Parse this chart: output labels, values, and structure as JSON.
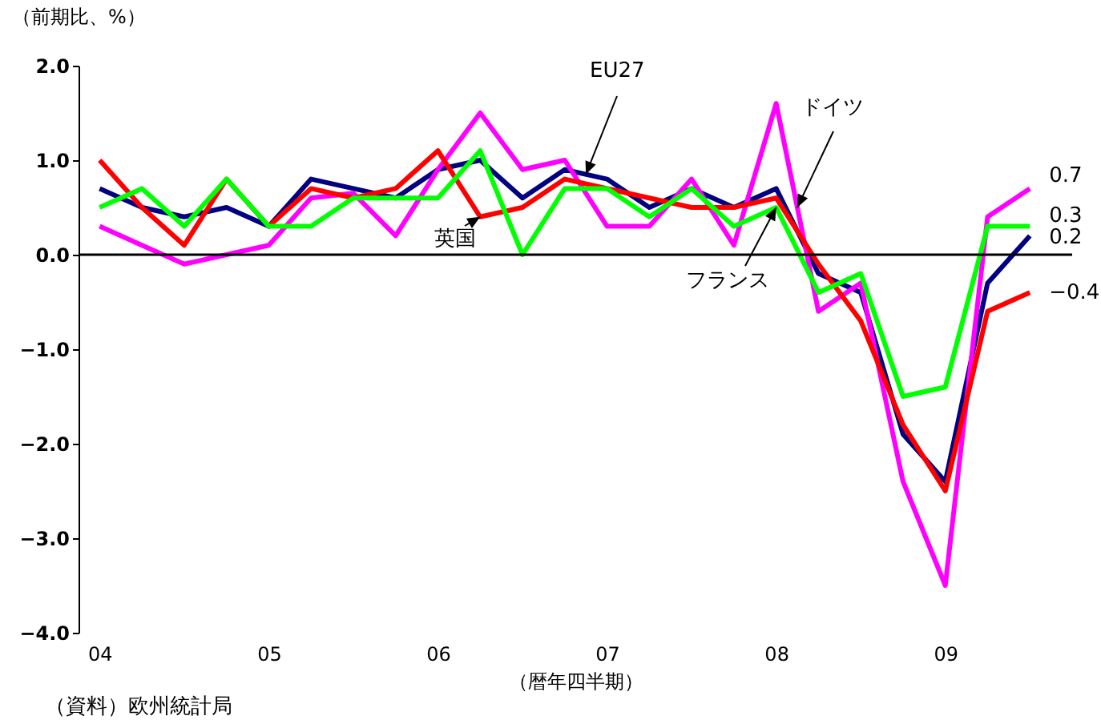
{
  "chart_data": {
    "type": "line",
    "ylabel": "（前期比、%）",
    "xlabel": "（暦年四半期）",
    "annotations": [
      "（資料）欧州統計局"
    ],
    "x": [
      2004,
      2004.25,
      2004.5,
      2004.75,
      2005,
      2005.25,
      2005.5,
      2005.75,
      2006,
      2006.25,
      2006.5,
      2006.75,
      2007,
      2007.25,
      2007.5,
      2007.75,
      2008,
      2008.25,
      2008.5,
      2008.75,
      2009,
      2009.25,
      2009.5
    ],
    "series": [
      {
        "name": "EU27",
        "color": "#000080",
        "values": [
          0.7,
          0.5,
          0.4,
          0.5,
          0.3,
          0.8,
          0.7,
          0.6,
          0.9,
          1.0,
          0.6,
          0.9,
          0.8,
          0.5,
          0.7,
          0.5,
          0.7,
          -0.2,
          -0.4,
          -1.9,
          -2.4,
          -0.3,
          0.2
        ],
        "value_labels": [
          null,
          null,
          null,
          null,
          null,
          null,
          null,
          null,
          null,
          null,
          null,
          null,
          null,
          null,
          null,
          null,
          null,
          null,
          null,
          null,
          null,
          null,
          "0.2"
        ]
      },
      {
        "name": "ドイツ",
        "color": "#ff00ff",
        "values": [
          0.3,
          0.1,
          -0.1,
          0.0,
          0.1,
          0.6,
          0.65,
          0.2,
          0.9,
          1.5,
          0.9,
          1.0,
          0.3,
          0.3,
          0.8,
          0.1,
          1.6,
          -0.6,
          -0.3,
          -2.4,
          -3.5,
          0.4,
          0.7
        ],
        "value_labels": [
          null,
          null,
          null,
          null,
          null,
          null,
          null,
          null,
          null,
          null,
          null,
          null,
          null,
          null,
          null,
          null,
          null,
          null,
          null,
          null,
          null,
          null,
          "0.7"
        ]
      },
      {
        "name": "英国",
        "color": "#ff0000",
        "values": [
          1.0,
          0.5,
          0.1,
          0.8,
          0.3,
          0.7,
          0.6,
          0.7,
          1.1,
          0.4,
          0.5,
          0.8,
          0.7,
          0.6,
          0.5,
          0.5,
          0.6,
          -0.1,
          -0.7,
          -1.8,
          -2.5,
          -0.6,
          -0.4
        ],
        "value_labels": [
          null,
          null,
          null,
          null,
          null,
          null,
          null,
          null,
          null,
          null,
          null,
          null,
          null,
          null,
          null,
          null,
          null,
          null,
          null,
          null,
          null,
          null,
          "−0.4"
        ]
      },
      {
        "name": "フランス",
        "color": "#00ff00",
        "values": [
          0.5,
          0.7,
          0.3,
          0.8,
          0.3,
          0.3,
          0.6,
          0.6,
          0.6,
          1.1,
          0.0,
          0.7,
          0.7,
          0.4,
          0.7,
          0.3,
          0.5,
          -0.4,
          -0.2,
          -1.5,
          -1.4,
          0.3,
          0.3
        ],
        "value_labels": [
          null,
          null,
          null,
          null,
          null,
          null,
          null,
          null,
          null,
          null,
          null,
          null,
          null,
          null,
          null,
          null,
          null,
          null,
          null,
          null,
          null,
          null,
          "0.3"
        ]
      }
    ],
    "xlim": [
      2003.875,
      2009.75
    ],
    "xticks": [
      {
        "value": 2004,
        "label": "04"
      },
      {
        "value": 2005,
        "label": "05"
      },
      {
        "value": 2006,
        "label": "06"
      },
      {
        "value": 2007,
        "label": "07"
      },
      {
        "value": 2008,
        "label": "08"
      },
      {
        "value": 2009,
        "label": "09"
      }
    ],
    "ylim": [
      -4,
      2
    ],
    "yticks": [
      {
        "value": 2,
        "label": "2.0"
      },
      {
        "value": 1,
        "label": "1.0"
      },
      {
        "value": 0,
        "label": "0.0"
      },
      {
        "value": -1,
        "label": "−1.0"
      },
      {
        "value": -2,
        "label": "−2.0"
      },
      {
        "value": -3,
        "label": "−3.0"
      },
      {
        "value": -4,
        "label": "−4.0"
      }
    ],
    "ref_lines": [
      {
        "axis": "y",
        "value": 0,
        "label": null,
        "color": "#000000"
      }
    ],
    "grid": false,
    "marker": "none",
    "line_style": "solid"
  }
}
